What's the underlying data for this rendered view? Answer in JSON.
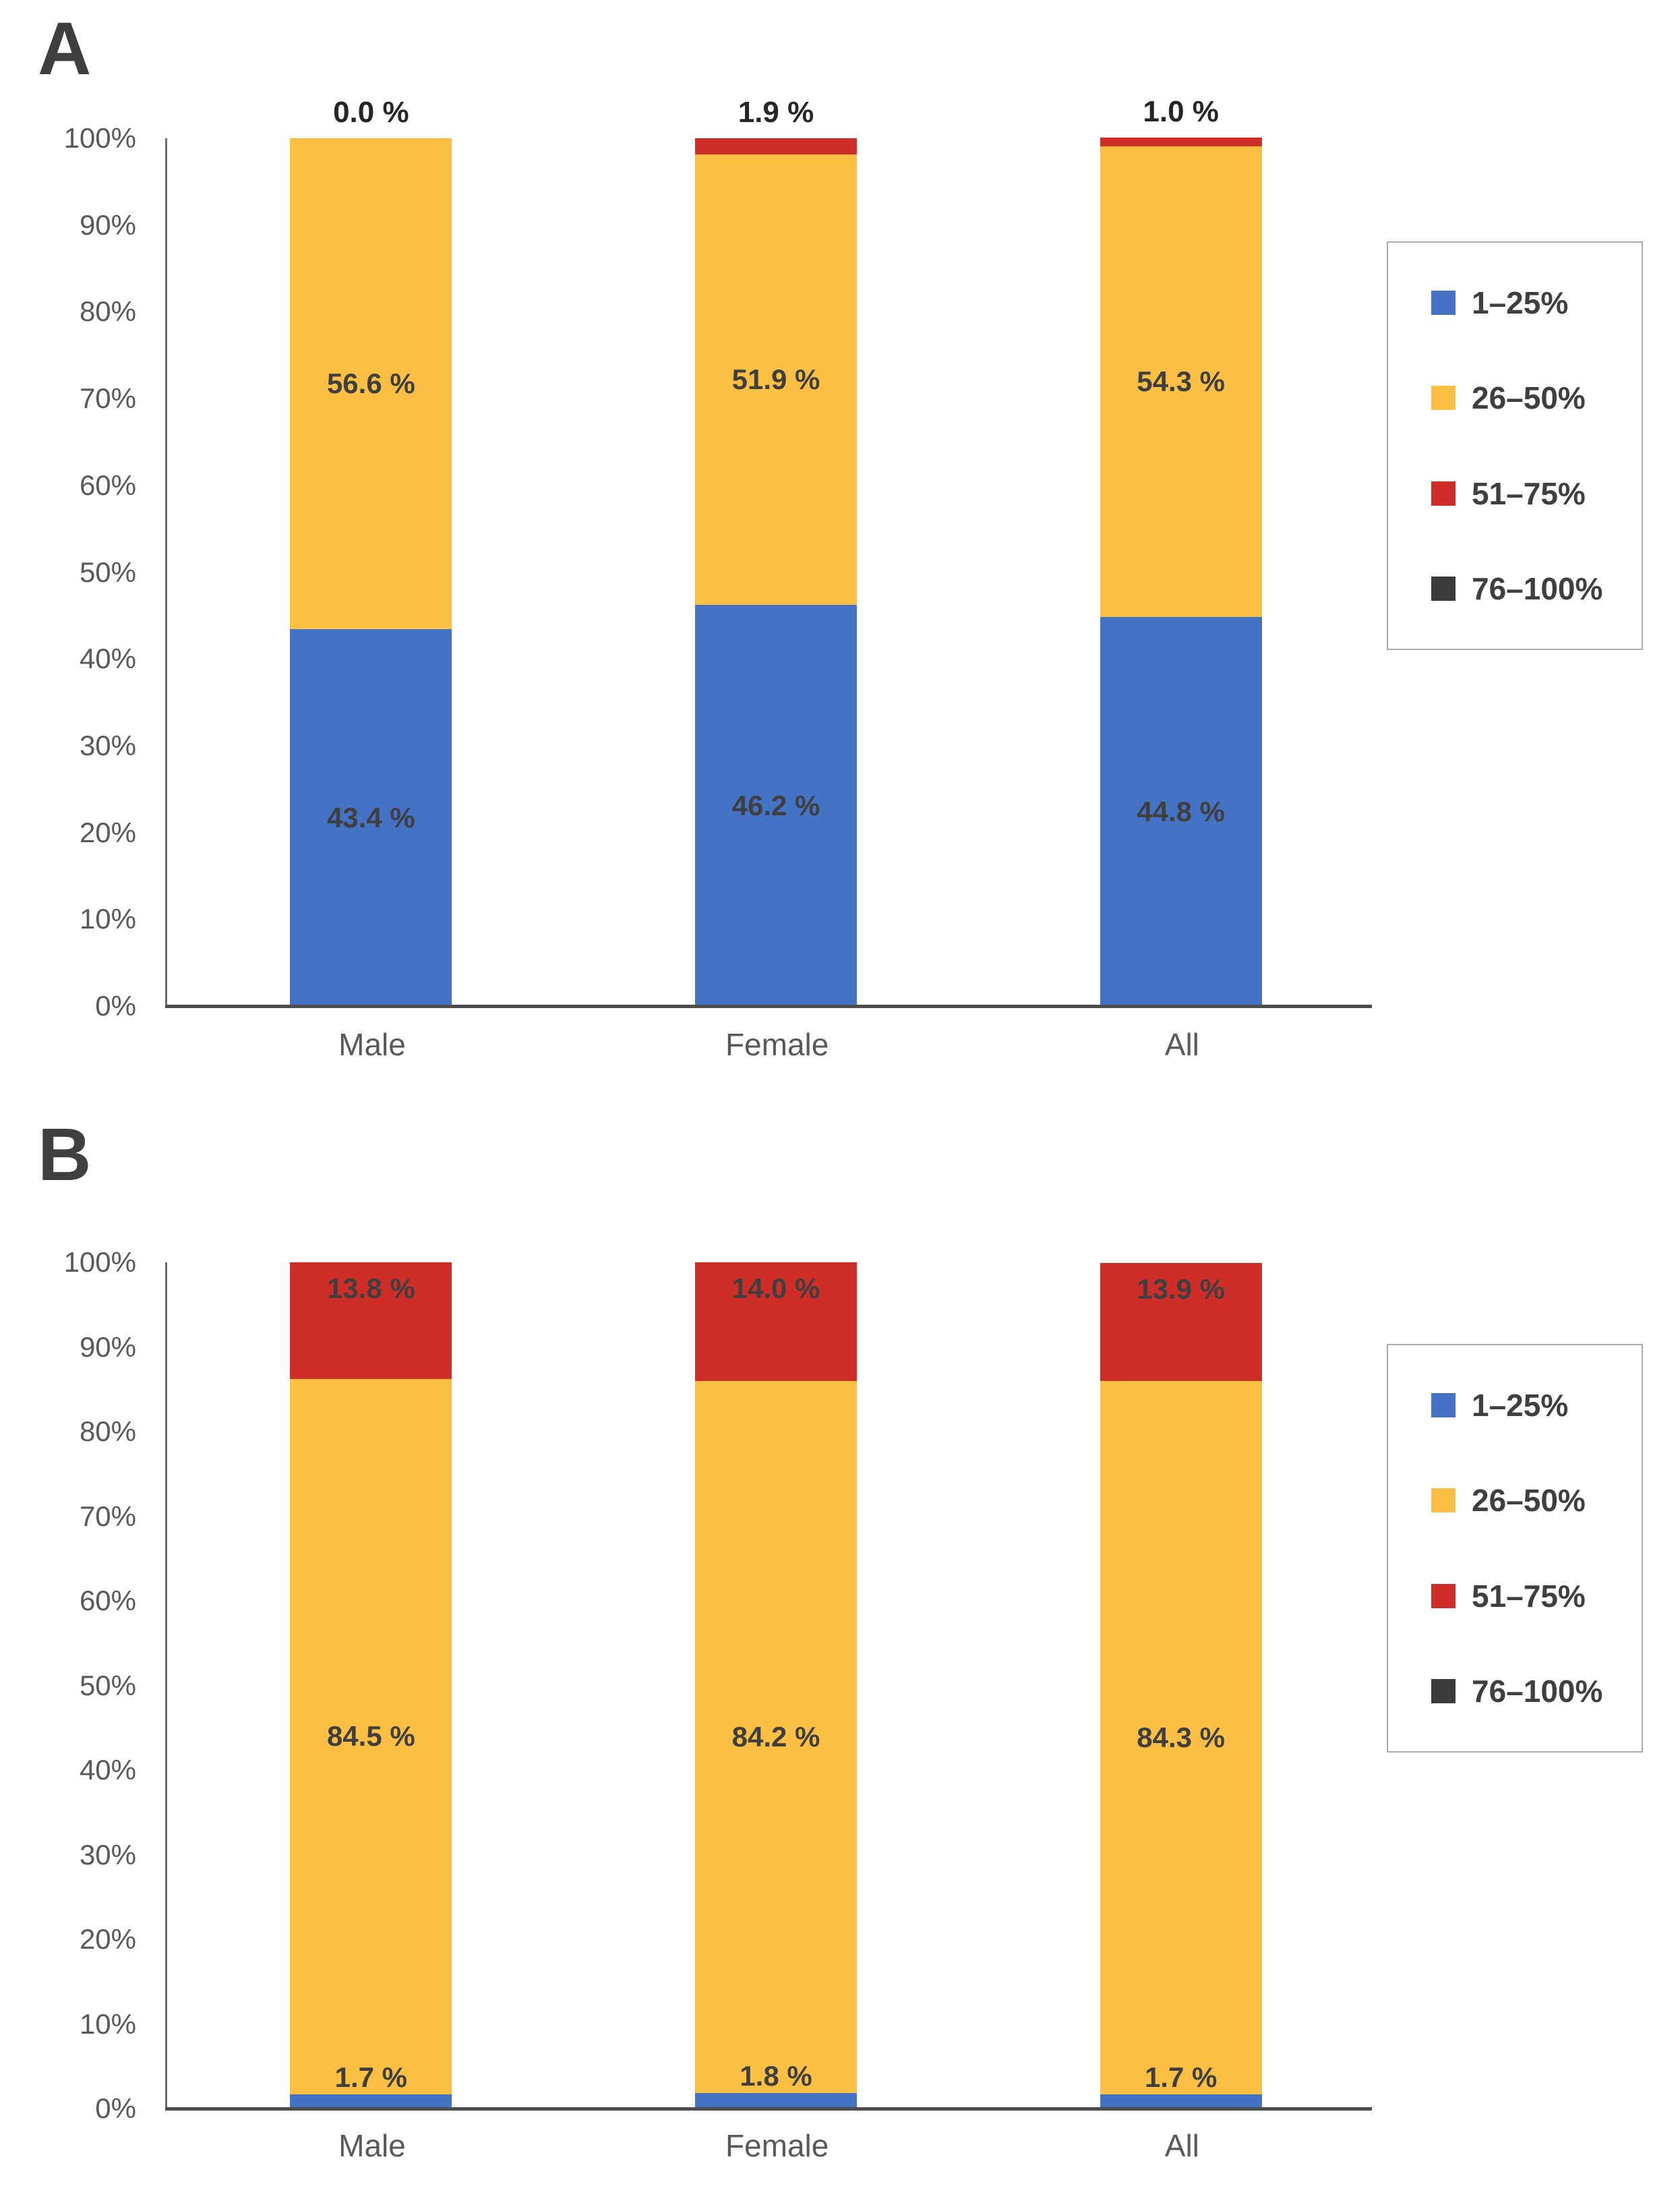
{
  "page": {
    "background": "#FFFFFF"
  },
  "panels": [
    {
      "label": "A"
    },
    {
      "label": "B"
    }
  ],
  "colors": {
    "blue": "#4472C4",
    "yellow": "#FBC043",
    "red": "#CF2D28",
    "dark": "#3B3B3B",
    "axis": "#595959"
  },
  "chart_data": [
    {
      "type": "bar",
      "stacked": true,
      "panel": "A",
      "categories": [
        "Male",
        "Female",
        "All"
      ],
      "y_ticks": [
        "0%",
        "10%",
        "20%",
        "30%",
        "40%",
        "50%",
        "60%",
        "70%",
        "80%",
        "90%",
        "100%"
      ],
      "ylim": [
        0,
        100
      ],
      "grid": false,
      "legend_position": "right",
      "series": [
        {
          "name": "1–25%",
          "color": "#4472C4",
          "values": [
            43.4,
            46.2,
            44.8
          ],
          "data_labels": [
            "43.4 %",
            "46.2 %",
            "44.8 %"
          ],
          "label_placement": "center"
        },
        {
          "name": "26–50%",
          "color": "#FBC043",
          "values": [
            56.6,
            51.9,
            54.3
          ],
          "data_labels": [
            "56.6 %",
            "51.9 %",
            "54.3 %"
          ],
          "label_placement": "center"
        },
        {
          "name": "51–75%",
          "color": "#CF2D28",
          "values": [
            0.0,
            1.9,
            1.0
          ],
          "data_labels": [
            "0.0 %",
            "1.9 %",
            "1.0 %"
          ],
          "label_placement": "above-bar"
        },
        {
          "name": "76–100%",
          "color": "#3B3B3B",
          "values": [
            0,
            0,
            0
          ],
          "data_labels": [
            "",
            "",
            ""
          ],
          "label_placement": "none"
        }
      ]
    },
    {
      "type": "bar",
      "stacked": true,
      "panel": "B",
      "categories": [
        "Male",
        "Female",
        "All"
      ],
      "y_ticks": [
        "0%",
        "10%",
        "20%",
        "30%",
        "40%",
        "50%",
        "60%",
        "70%",
        "80%",
        "90%",
        "100%"
      ],
      "ylim": [
        0,
        100
      ],
      "grid": false,
      "legend_position": "right",
      "series": [
        {
          "name": "1–25%",
          "color": "#4472C4",
          "values": [
            1.7,
            1.8,
            1.7
          ],
          "data_labels": [
            "1.7 %",
            "1.8 %",
            "1.7 %"
          ],
          "label_placement": "above-segment"
        },
        {
          "name": "26–50%",
          "color": "#FBC043",
          "values": [
            84.5,
            84.2,
            84.3
          ],
          "data_labels": [
            "84.5 %",
            "84.2 %",
            "84.3 %"
          ],
          "label_placement": "center"
        },
        {
          "name": "51–75%",
          "color": "#CF2D28",
          "values": [
            13.8,
            14.0,
            13.9
          ],
          "data_labels": [
            "13.8 %",
            "14.0 %",
            "13.9 %"
          ],
          "label_placement": "inside-top"
        },
        {
          "name": "76–100%",
          "color": "#3B3B3B",
          "values": [
            0,
            0,
            0
          ],
          "data_labels": [
            "",
            "",
            ""
          ],
          "label_placement": "none"
        }
      ]
    }
  ]
}
